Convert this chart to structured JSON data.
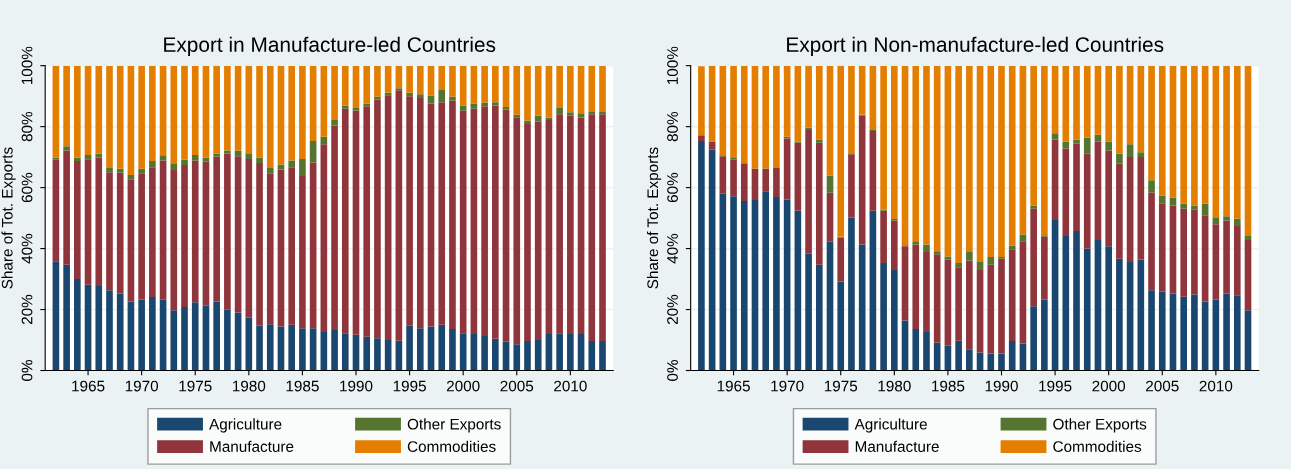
{
  "chart_data": [
    {
      "type": "bar",
      "stacked": true,
      "title": "Export in Manufacture-led Countries",
      "ylabel": "Share of Tot. Exports",
      "x": [
        1962,
        1963,
        1964,
        1965,
        1966,
        1967,
        1968,
        1969,
        1970,
        1971,
        1972,
        1973,
        1974,
        1975,
        1976,
        1977,
        1978,
        1979,
        1980,
        1981,
        1982,
        1983,
        1984,
        1985,
        1986,
        1987,
        1988,
        1989,
        1990,
        1991,
        1992,
        1993,
        1994,
        1995,
        1996,
        1997,
        1998,
        1999,
        2000,
        2001,
        2002,
        2003,
        2004,
        2005,
        2006,
        2007,
        2008,
        2009,
        2010,
        2011,
        2012,
        2013
      ],
      "xlim": [
        1961,
        2014
      ],
      "xticks": [
        1965,
        1970,
        1975,
        1980,
        1985,
        1990,
        1995,
        2000,
        2005,
        2010
      ],
      "ylim": [
        0,
        100
      ],
      "yticks": [
        {
          "value": 0,
          "label": "0%"
        },
        {
          "value": 20,
          "label": "20%"
        },
        {
          "value": 40,
          "label": "40%"
        },
        {
          "value": 60,
          "label": "60%"
        },
        {
          "value": 80,
          "label": "80%"
        },
        {
          "value": 100,
          "label": "100%"
        }
      ],
      "grid": "y",
      "legend": "bottom",
      "series": [
        {
          "name": "Agriculture",
          "color": "#1a476f",
          "values": [
            35.8,
            34.7,
            30,
            28.1,
            27.7,
            26.3,
            25.3,
            22.6,
            23.3,
            24.1,
            23.2,
            19.8,
            20.8,
            22.4,
            21.3,
            22.6,
            19.9,
            19,
            17.3,
            14.7,
            15.2,
            14.4,
            15,
            13.9,
            13.9,
            12.6,
            13.3,
            12.2,
            11.7,
            11.1,
            10.6,
            10,
            9.8,
            14.7,
            13.9,
            14.4,
            15,
            13.6,
            12.2,
            12,
            11.3,
            10.4,
            9.4,
            8.6,
            9.7,
            10,
            12,
            12.2,
            12,
            12,
            9.7,
            9.7
          ]
        },
        {
          "name": "Manufacture",
          "color": "#90353b",
          "values": [
            33.3,
            37.5,
            38.7,
            41.2,
            42.1,
            38.7,
            39.6,
            40.1,
            41.4,
            42.6,
            45.7,
            46,
            46.6,
            46.5,
            47.3,
            47.5,
            51.3,
            51.3,
            52.1,
            53.4,
            49.5,
            51.5,
            51.7,
            49.9,
            54.3,
            61.6,
            67.1,
            73.7,
            73.6,
            75.6,
            78.3,
            80.3,
            82.1,
            75.3,
            75.5,
            73.2,
            73,
            75,
            73,
            73.9,
            75.4,
            76.5,
            76.2,
            74.5,
            71.2,
            71.7,
            70.2,
            71.9,
            71.6,
            71,
            74.4,
            74.4
          ]
        },
        {
          "name": "Other Exports",
          "color": "#55752f",
          "values": [
            0.7,
            1.4,
            1.1,
            1.4,
            1.3,
            1.4,
            1.3,
            1.4,
            1.5,
            2.0,
            1.7,
            2.2,
            1.7,
            1.8,
            1.3,
            1.0,
            1.0,
            1.8,
            1.9,
            1.7,
            1.7,
            1.7,
            2.2,
            5.6,
            7.1,
            2.5,
            1.8,
            1.0,
            0.8,
            0.9,
            0.9,
            0.8,
            0.7,
            1.1,
            1.2,
            2.6,
            4.0,
            1.2,
            1.7,
            1.7,
            1.1,
            1.1,
            0.8,
            0.8,
            1.1,
            1.9,
            0.7,
            2.0,
            1.1,
            1.4,
            0.7,
            0.7
          ]
        },
        {
          "name": "Commodities",
          "color": "#e37e00",
          "values": [
            30.2,
            26.4,
            30.2,
            29.3,
            28.9,
            33.6,
            33.8,
            35.9,
            33.8,
            31.3,
            29.4,
            32,
            30.9,
            29.3,
            30.1,
            28.9,
            27.8,
            27.9,
            28.7,
            30.2,
            33.6,
            32.4,
            31.1,
            30.6,
            24.7,
            23.3,
            17.8,
            13.1,
            13.9,
            12.4,
            10.2,
            8.9,
            7.4,
            8.9,
            9.4,
            9.8,
            8,
            10.2,
            13.1,
            12.4,
            12.2,
            12,
            13.6,
            16.1,
            18,
            16.4,
            17.1,
            13.9,
            15.3,
            15.6,
            15.2,
            15.2
          ]
        }
      ]
    },
    {
      "type": "bar",
      "stacked": true,
      "title": "Export in Non-manufacture-led Countries",
      "ylabel": "Share of Tot. Exports",
      "x": [
        1962,
        1963,
        1964,
        1965,
        1966,
        1967,
        1968,
        1969,
        1970,
        1971,
        1972,
        1973,
        1974,
        1975,
        1976,
        1977,
        1978,
        1979,
        1980,
        1981,
        1982,
        1983,
        1984,
        1985,
        1986,
        1987,
        1988,
        1989,
        1990,
        1991,
        1992,
        1993,
        1994,
        1995,
        1996,
        1997,
        1998,
        1999,
        2000,
        2001,
        2002,
        2003,
        2004,
        2005,
        2006,
        2007,
        2008,
        2009,
        2010,
        2011,
        2012,
        2013
      ],
      "xlim": [
        1961,
        2014
      ],
      "xticks": [
        1965,
        1970,
        1975,
        1980,
        1985,
        1990,
        1995,
        2000,
        2005,
        2010
      ],
      "ylim": [
        0,
        100
      ],
      "yticks": [
        {
          "value": 0,
          "label": "0%"
        },
        {
          "value": 20,
          "label": "20%"
        },
        {
          "value": 40,
          "label": "40%"
        },
        {
          "value": 60,
          "label": "60%"
        },
        {
          "value": 80,
          "label": "80%"
        },
        {
          "value": 100,
          "label": "100%"
        }
      ],
      "grid": "y",
      "legend": "bottom",
      "series": [
        {
          "name": "Agriculture",
          "color": "#1a476f",
          "values": [
            75.3,
            72.4,
            58,
            57.2,
            55.6,
            55.9,
            58.8,
            56.9,
            56.1,
            52.4,
            38.3,
            34.7,
            42.2,
            29.2,
            50.2,
            41.3,
            52.4,
            35.3,
            33,
            16.4,
            13.6,
            12.6,
            9.2,
            8.1,
            9.8,
            7,
            5.9,
            5.6,
            5.6,
            9.7,
            8.9,
            21.1,
            23.3,
            49.4,
            44.1,
            45.8,
            40,
            42.8,
            40.8,
            36.7,
            35.6,
            36.4,
            26.3,
            25.8,
            25.3,
            24.2,
            24.9,
            22.6,
            23.3,
            25.3,
            24.7,
            19.8
          ]
        },
        {
          "name": "Manufacture",
          "color": "#90353b",
          "values": [
            1.9,
            2.6,
            12.3,
            11.9,
            12.2,
            10.2,
            7.3,
            9.5,
            20,
            22.3,
            40.6,
            40,
            16.1,
            14.4,
            20.7,
            42.3,
            26.2,
            17.1,
            16.2,
            24.4,
            27.7,
            26.3,
            28.9,
            28.2,
            24.1,
            29.1,
            27.1,
            29.1,
            31.1,
            30.1,
            33.5,
            32,
            20.6,
            26.4,
            28.7,
            28.6,
            31.1,
            32.2,
            31.4,
            31.1,
            34.4,
            33.6,
            32,
            29.1,
            28.8,
            28.9,
            27.8,
            28.3,
            24.7,
            23.9,
            22.7,
            23
          ]
        },
        {
          "name": "Other Exports",
          "color": "#55752f",
          "values": [
            null,
            0.2,
            0.3,
            0.6,
            0.3,
            0.2,
            0.2,
            0.3,
            0.6,
            0.3,
            0.8,
            1.1,
            5.6,
            0.3,
            0.4,
            0.3,
            0.3,
            0.3,
            0.5,
            0.3,
            1.1,
            2.4,
            1.0,
            1.1,
            1.4,
            3.0,
            2.8,
            2.5,
            0.5,
            1.1,
            2.2,
            1.0,
            0.5,
            2.0,
            2.2,
            1.4,
            5.3,
            2.3,
            2.8,
            3.3,
            4.2,
            1.6,
            4.1,
            2.5,
            2.6,
            1.7,
            1.4,
            3.8,
            2.0,
            1.4,
            2.4,
            1.3
          ]
        },
        {
          "name": "Commodities",
          "color": "#e37e00",
          "values": [
            22.6,
            24.8,
            29.4,
            30.3,
            31.9,
            33.7,
            33.7,
            33.3,
            23.3,
            25,
            20.3,
            24.2,
            36.1,
            56.1,
            28.7,
            16.1,
            21.1,
            47.3,
            50.3,
            58.9,
            57.6,
            58.7,
            60.9,
            62.6,
            64.7,
            60.9,
            64.2,
            62.8,
            62.8,
            59.1,
            55.4,
            45.9,
            55.6,
            22.2,
            25,
            24.2,
            23.6,
            22.7,
            25,
            28.9,
            25.8,
            28.4,
            37.6,
            42.6,
            43.3,
            45.2,
            45.9,
            45.3,
            50,
            49.4,
            50.2,
            55.9
          ]
        }
      ]
    }
  ]
}
